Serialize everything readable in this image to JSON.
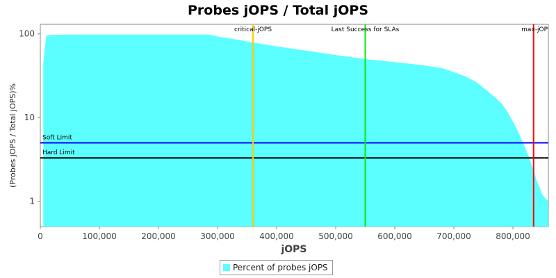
{
  "chart_data": {
    "type": "area",
    "title": "Probes jOPS / Total jOPS",
    "xlabel": "jOPS",
    "ylabel": "(Probes jOPS / Total jOPS)%",
    "x_scale": "linear",
    "y_scale": "log",
    "xlim": [
      0,
      860000
    ],
    "ylim": [
      0.5,
      130
    ],
    "x_ticks": [
      0,
      100000,
      200000,
      300000,
      400000,
      500000,
      600000,
      700000,
      800000
    ],
    "x_tick_labels": [
      "0",
      "100,000",
      "200,000",
      "300,000",
      "400,000",
      "500,000",
      "600,000",
      "700,000",
      "800,000"
    ],
    "y_ticks": [
      1,
      10,
      100
    ],
    "y_tick_labels": [
      "1",
      "10",
      "100"
    ],
    "grid": false,
    "legend_position": "bottom",
    "series": [
      {
        "name": "Percent of probes jOPS",
        "color": "#5cffff",
        "x": [
          5000,
          10000,
          20000,
          50000,
          100000,
          200000,
          285000,
          300000,
          330000,
          360000,
          400000,
          450000,
          500000,
          550000,
          600000,
          650000,
          680000,
          700000,
          720000,
          740000,
          760000,
          780000,
          790000,
          800000,
          810000,
          820000,
          830000,
          840000,
          850000,
          860000
        ],
        "y": [
          45,
          95,
          97,
          98,
          98,
          98,
          98,
          93,
          86,
          79,
          71,
          63,
          56,
          50,
          46,
          42,
          39,
          35,
          31,
          26,
          20,
          15,
          12,
          9,
          6.5,
          4.5,
          3,
          1.8,
          1.2,
          1.0
        ]
      }
    ],
    "markers": [
      {
        "label": "critical-jOPS",
        "x": 360000,
        "color": "#ffcc00"
      },
      {
        "label": "Last Success for SLAs",
        "x": 550000,
        "color": "#00ee00"
      },
      {
        "label": "max-jOP",
        "x": 835000,
        "color": "#ff0000"
      }
    ],
    "limits": [
      {
        "label": "Soft Limit",
        "y": 5,
        "color": "#0000ff"
      },
      {
        "label": "Hard Limit",
        "y": 3.3,
        "color": "#000000"
      }
    ]
  }
}
